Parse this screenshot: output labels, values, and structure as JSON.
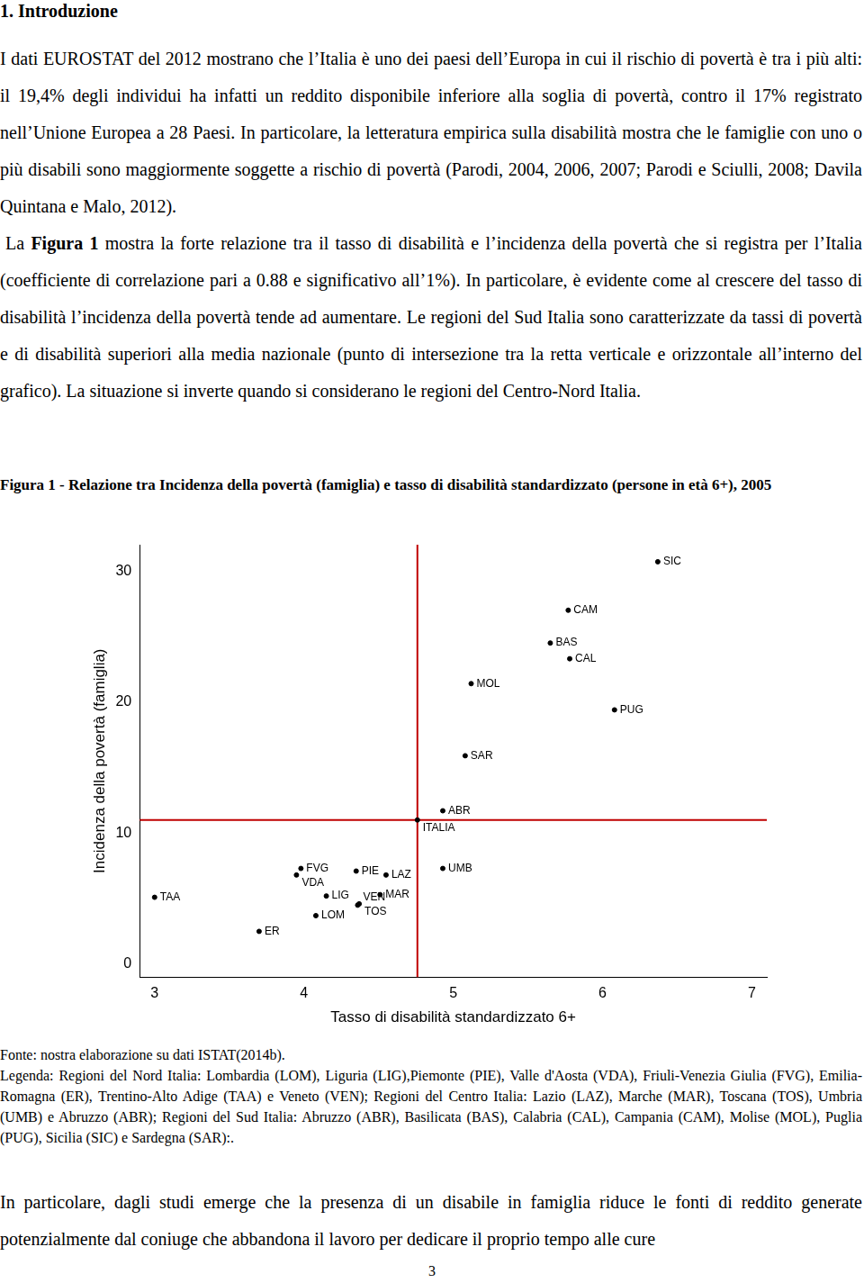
{
  "document": {
    "heading": "1. Introduzione",
    "paragraphs": [
      [
        {
          "text": "I dati EUROSTAT del 2012 mostrano che l’Italia è uno dei paesi dell’Europa in cui il rischio di povertà è tra i più alti: il 19,4% degli individui ha infatti un reddito disponibile inferiore alla soglia di povertà, contro il 17% registrato nell’Unione Europea a 28 Paesi. In particolare, la letteratura empirica sulla disabilità mostra che le famiglie con uno o più disabili sono maggiormente soggette a rischio di povertà (Parodi, 2004, 2006, 2007; Parodi e Sciulli, 2008; Davila Quintana e Malo, 2012)."
        }
      ],
      [
        {
          "text": "La "
        },
        {
          "text": "Figura 1",
          "bold": true
        },
        {
          "text": " mostra la forte relazione tra il tasso di disabilità e l’incidenza della povertà che si registra per l’Italia (coefficiente di correlazione pari a 0.88 e significativo all’1%). In particolare, è evidente come al crescere del tasso di disabilità l’incidenza della povertà tende ad aumentare. Le regioni del Sud Italia sono caratterizzate da tassi di povertà e di disabilità superiori alla media nazionale (punto di intersezione tra la retta verticale e orizzontale all’interno del grafico). La situazione si inverte quando si considerano le regioni del Centro-Nord Italia."
        }
      ]
    ],
    "figure_caption": "Figura 1 -  Relazione tra Incidenza della povertà (famiglia) e tasso di disabilità standardizzato (persone in età 6+), 2005",
    "source": "Fonte: nostra elaborazione su dati ISTAT(2014b).",
    "legend_note": "Legenda: Regioni del Nord Italia:  Lombardia (LOM), Liguria (LIG),Piemonte (PIE), Valle d'Aosta (VDA), Friuli-Venezia Giulia (FVG), Emilia-Romagna (ER), Trentino-Alto Adige (TAA) e Veneto (VEN); Regioni del Centro Italia:  Lazio (LAZ), Marche (MAR), Toscana (TOS), Umbria (UMB) e Abruzzo (ABR); Regioni del Sud Italia: Abruzzo (ABR), Basilicata (BAS), Calabria (CAL), Campania (CAM), Molise (MOL), Puglia (PUG), Sicilia (SIC) e Sardegna (SAR):.",
    "closing_paragraph": "In particolare, dagli studi emerge che la presenza di un disabile in famiglia riduce le fonti di reddito generate potenzialmente dal coniuge che abbandona il lavoro per dedicare il proprio tempo alle cure",
    "page_number": "3"
  },
  "chart_data": {
    "type": "scatter",
    "x_label": "Tasso di disabilità standardizzato 6+",
    "y_label": "Incidenza della povertà (famiglia)",
    "xlim": [
      2.9,
      7.1
    ],
    "ylim": [
      -1,
      32
    ],
    "xticks": [
      3,
      4,
      5,
      6,
      7
    ],
    "yticks": [
      0,
      10,
      20,
      30
    ],
    "grid": false,
    "color": "#000000",
    "marker": "circle",
    "points": [
      {
        "label": "SIC",
        "x": 6.37,
        "y": 30.7
      },
      {
        "label": "CAM",
        "x": 5.77,
        "y": 27.0
      },
      {
        "label": "BAS",
        "x": 5.65,
        "y": 24.5
      },
      {
        "label": "CAL",
        "x": 5.78,
        "y": 23.3
      },
      {
        "label": "MOL",
        "x": 5.12,
        "y": 21.4
      },
      {
        "label": "PUG",
        "x": 6.08,
        "y": 19.4
      },
      {
        "label": "SAR",
        "x": 5.08,
        "y": 15.9
      },
      {
        "label": "ABR",
        "x": 4.93,
        "y": 11.7
      },
      {
        "label": "ITALIA",
        "x": 4.76,
        "y": 11.0
      },
      {
        "label": "UMB",
        "x": 4.93,
        "y": 7.3
      },
      {
        "label": "FVG",
        "x": 3.98,
        "y": 7.3
      },
      {
        "label": "VDA",
        "x": 3.95,
        "y": 6.8
      },
      {
        "label": "PIE",
        "x": 4.35,
        "y": 7.1
      },
      {
        "label": "LAZ",
        "x": 4.55,
        "y": 6.8
      },
      {
        "label": "MAR",
        "x": 4.51,
        "y": 5.3
      },
      {
        "label": "TOS",
        "x": 4.37,
        "y": 4.6
      },
      {
        "label": "VEN",
        "x": 4.36,
        "y": 4.5
      },
      {
        "label": "LIG",
        "x": 4.15,
        "y": 5.2
      },
      {
        "label": "LOM",
        "x": 4.08,
        "y": 3.7
      },
      {
        "label": "TAA",
        "x": 3.0,
        "y": 5.1
      },
      {
        "label": "ER",
        "x": 3.7,
        "y": 2.5
      }
    ],
    "reference_lines": {
      "x": 4.76,
      "y": 11.0,
      "color": "#c00000"
    }
  }
}
